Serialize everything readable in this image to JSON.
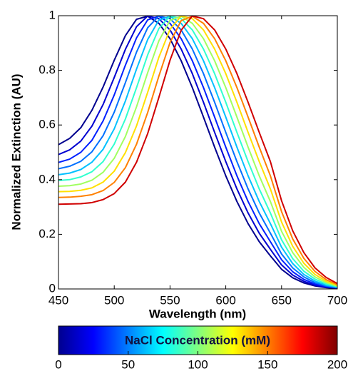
{
  "chart_data": {
    "type": "line",
    "xlabel": "Wavelength (nm)",
    "ylabel": "Normalized Extinction (AU)",
    "xlim": [
      450,
      700
    ],
    "ylim": [
      0,
      1
    ],
    "xticks": [
      450,
      500,
      550,
      600,
      650,
      700
    ],
    "yticks": [
      0,
      0.2,
      0.4,
      0.6,
      0.8,
      1
    ],
    "x": [
      450,
      460,
      470,
      480,
      490,
      500,
      510,
      520,
      530,
      540,
      550,
      560,
      570,
      580,
      590,
      600,
      610,
      620,
      630,
      640,
      650,
      660,
      670,
      680,
      690,
      700
    ],
    "series": [
      {
        "color": "#00008f",
        "values": [
          0.528,
          0.551,
          0.59,
          0.654,
          0.739,
          0.837,
          0.927,
          0.987,
          0.998,
          0.972,
          0.916,
          0.835,
          0.737,
          0.629,
          0.519,
          0.414,
          0.32,
          0.239,
          0.173,
          0.121,
          0.072,
          0.041,
          0.022,
          0.011,
          0.005,
          0.002
        ]
      },
      {
        "color": "#0000d0",
        "values": [
          0.492,
          0.509,
          0.541,
          0.596,
          0.675,
          0.774,
          0.877,
          0.96,
          0.999,
          0.989,
          0.948,
          0.878,
          0.788,
          0.683,
          0.573,
          0.466,
          0.366,
          0.278,
          0.204,
          0.145,
          0.088,
          0.051,
          0.028,
          0.014,
          0.007,
          0.003
        ]
      },
      {
        "color": "#0020ff",
        "values": [
          0.463,
          0.475,
          0.5,
          0.544,
          0.615,
          0.71,
          0.819,
          0.919,
          0.985,
          0.998,
          0.972,
          0.916,
          0.835,
          0.737,
          0.629,
          0.519,
          0.414,
          0.32,
          0.239,
          0.173,
          0.107,
          0.063,
          0.035,
          0.018,
          0.009,
          0.004
        ]
      },
      {
        "color": "#0070ff",
        "values": [
          0.44,
          0.449,
          0.467,
          0.502,
          0.561,
          0.647,
          0.755,
          0.867,
          0.956,
          0.999,
          0.989,
          0.948,
          0.878,
          0.788,
          0.683,
          0.573,
          0.466,
          0.366,
          0.278,
          0.204,
          0.128,
          0.077,
          0.044,
          0.023,
          0.011,
          0.005
        ]
      },
      {
        "color": "#00c0ff",
        "values": [
          0.418,
          0.424,
          0.437,
          0.464,
          0.511,
          0.586,
          0.688,
          0.805,
          0.913,
          0.984,
          0.998,
          0.972,
          0.916,
          0.835,
          0.737,
          0.629,
          0.519,
          0.414,
          0.32,
          0.239,
          0.153,
          0.093,
          0.053,
          0.029,
          0.014,
          0.006
        ]
      },
      {
        "color": "#30ffcf",
        "values": [
          0.397,
          0.4,
          0.41,
          0.429,
          0.466,
          0.53,
          0.622,
          0.737,
          0.857,
          0.953,
          0.999,
          0.989,
          0.948,
          0.878,
          0.788,
          0.683,
          0.573,
          0.466,
          0.366,
          0.278,
          0.18,
          0.111,
          0.065,
          0.036,
          0.018,
          0.008
        ]
      },
      {
        "color": "#a0ff60",
        "values": [
          0.376,
          0.378,
          0.384,
          0.398,
          0.427,
          0.478,
          0.558,
          0.667,
          0.792,
          0.908,
          0.983,
          0.998,
          0.972,
          0.916,
          0.835,
          0.737,
          0.629,
          0.519,
          0.414,
          0.32,
          0.211,
          0.133,
          0.079,
          0.044,
          0.023,
          0.01
        ]
      },
      {
        "color": "#ffe000",
        "values": [
          0.356,
          0.357,
          0.361,
          0.37,
          0.391,
          0.431,
          0.499,
          0.597,
          0.72,
          0.848,
          0.95,
          0.999,
          0.989,
          0.948,
          0.878,
          0.788,
          0.683,
          0.573,
          0.466,
          0.366,
          0.245,
          0.156,
          0.094,
          0.053,
          0.028,
          0.013
        ]
      },
      {
        "color": "#ff8000",
        "values": [
          0.335,
          0.336,
          0.339,
          0.345,
          0.36,
          0.39,
          0.444,
          0.53,
          0.646,
          0.779,
          0.902,
          0.982,
          0.998,
          0.972,
          0.916,
          0.835,
          0.737,
          0.629,
          0.519,
          0.414,
          0.283,
          0.183,
          0.112,
          0.064,
          0.034,
          0.016
        ]
      },
      {
        "color": "#d00000",
        "values": [
          0.31,
          0.311,
          0.312,
          0.316,
          0.327,
          0.349,
          0.391,
          0.464,
          0.569,
          0.701,
          0.837,
          0.947,
          0.999,
          0.989,
          0.948,
          0.878,
          0.788,
          0.683,
          0.573,
          0.466,
          0.323,
          0.213,
          0.133,
          0.077,
          0.042,
          0.02
        ]
      }
    ],
    "colorbar": {
      "label": "NaCl Concentration (mM)",
      "lim": [
        0,
        200
      ],
      "ticks": [
        0,
        50,
        100,
        150,
        200
      ]
    }
  }
}
